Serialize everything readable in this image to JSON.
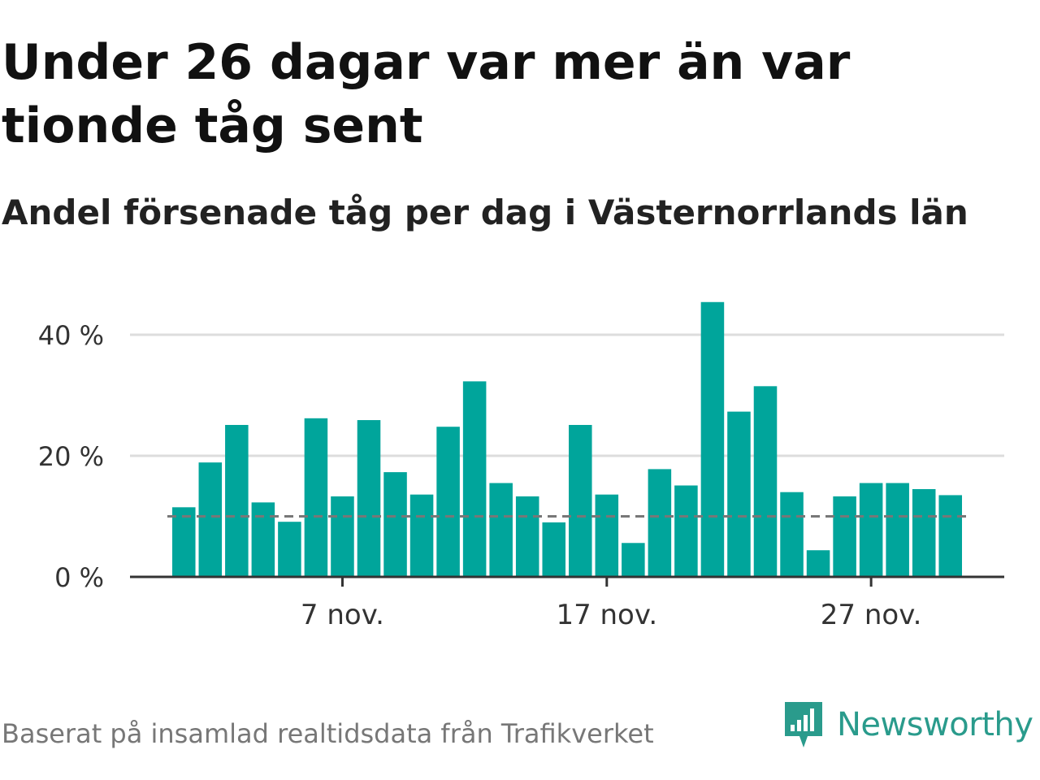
{
  "header": {
    "title": "Under 26 dagar var mer än var tionde tåg sent",
    "subtitle": "Andel försenade tåg per dag i Västernorrlands län"
  },
  "footer": {
    "source": "Baserat på insamlad realtidsdata från Trafikverket",
    "brand": "Newsworthy",
    "brand_icon": "newsworthy-logo-icon"
  },
  "colors": {
    "bar": "#00a59b",
    "grid": "#dddddd",
    "axis": "#333333",
    "reference_line": "#777777",
    "brand": "#2a9b8c"
  },
  "chart_data": {
    "type": "bar",
    "x": [
      "1 nov.",
      "2 nov.",
      "3 nov.",
      "4 nov.",
      "5 nov.",
      "6 nov.",
      "7 nov.",
      "8 nov.",
      "9 nov.",
      "10 nov.",
      "11 nov.",
      "12 nov.",
      "13 nov.",
      "14 nov.",
      "15 nov.",
      "16 nov.",
      "17 nov.",
      "18 nov.",
      "19 nov.",
      "20 nov.",
      "21 nov.",
      "22 nov.",
      "23 nov.",
      "24 nov.",
      "25 nov.",
      "26 nov.",
      "27 nov.",
      "28 nov.",
      "29 nov.",
      "30 nov."
    ],
    "values": [
      11.5,
      18.9,
      25.1,
      12.3,
      9.1,
      26.2,
      13.3,
      25.9,
      17.3,
      13.6,
      24.8,
      32.3,
      15.5,
      13.3,
      9.0,
      25.1,
      13.6,
      5.6,
      17.8,
      15.1,
      45.4,
      27.3,
      31.5,
      14.0,
      4.4,
      13.3,
      15.5,
      15.5,
      14.5,
      13.5
    ],
    "reference_line": 10,
    "ylim": [
      0,
      48
    ],
    "y_ticks": [
      0,
      20,
      40
    ],
    "y_tick_labels": [
      "0 %",
      "20 %",
      "40 %"
    ],
    "x_ticks": [
      "7 nov.",
      "17 nov.",
      "27 nov."
    ],
    "grid": true,
    "legend": "none"
  }
}
